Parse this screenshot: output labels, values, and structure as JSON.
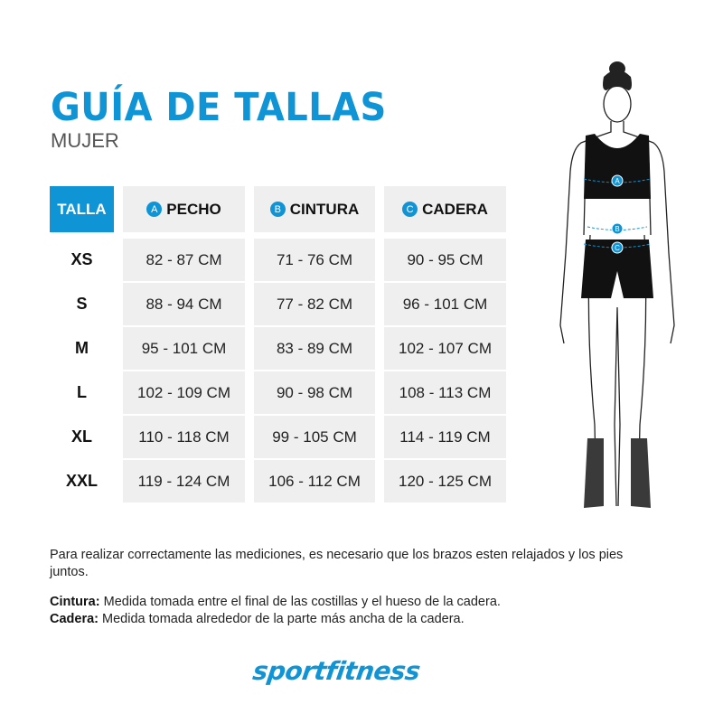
{
  "header": {
    "title": "GUÍA DE TALLAS",
    "subtitle": "MUJER"
  },
  "table": {
    "columns": [
      {
        "label": "TALLA",
        "badge": ""
      },
      {
        "label": "PECHO",
        "badge": "A"
      },
      {
        "label": "CINTURA",
        "badge": "B"
      },
      {
        "label": "CADERA",
        "badge": "C"
      }
    ],
    "rows": [
      [
        "XS",
        "82 - 87 CM",
        "71 - 76 CM",
        "90 - 95 CM"
      ],
      [
        "S",
        "88 - 94 CM",
        "77 - 82 CM",
        "96 - 101 CM"
      ],
      [
        "M",
        "95 - 101 CM",
        "83 - 89 CM",
        "102 - 107 CM"
      ],
      [
        "L",
        "102 - 109 CM",
        "90 - 98 CM",
        "108 - 113 CM"
      ],
      [
        "XL",
        "110 - 118 CM",
        "99 - 105 CM",
        "114 - 119 CM"
      ],
      [
        "XXL",
        "119 - 124 CM",
        "106 - 112 CM",
        "120 - 125 CM"
      ]
    ]
  },
  "figure": {
    "markers": [
      "A",
      "B",
      "C"
    ]
  },
  "notes": {
    "intro": "Para realizar correctamente las mediciones, es necesario que los brazos esten relajados y los pies juntos.",
    "cintura_label": "Cintura:",
    "cintura_text": " Medida tomada entre el final de las costillas y el hueso de la cadera.",
    "cadera_label": "Cadera:",
    "cadera_text": " Medida tomada alrededor de la parte más ancha de la cadera."
  },
  "brand": {
    "logo": "sportfitness",
    "color": "#0f94d6"
  }
}
